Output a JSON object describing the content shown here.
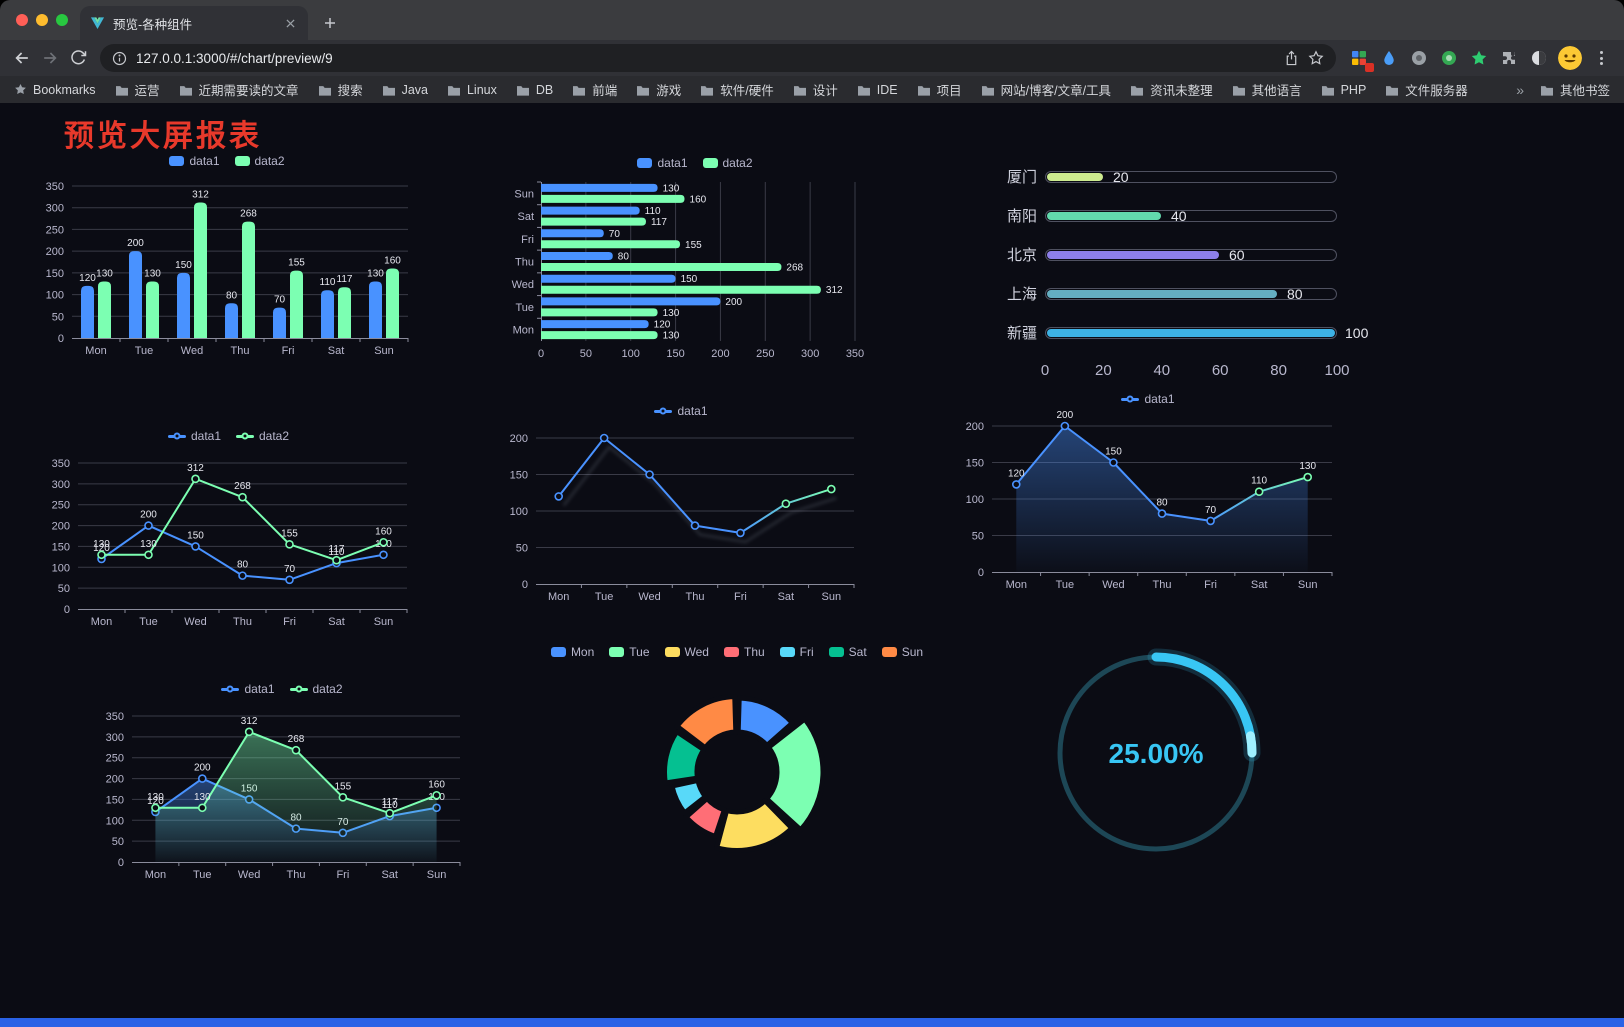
{
  "browser": {
    "tab": {
      "title": "预览-各种组件"
    },
    "url": "127.0.0.1:3000/#/chart/preview/9",
    "bookmarks_bar": {
      "root_label": "Bookmarks",
      "folders": [
        "运营",
        "近期需要读的文章",
        "搜索",
        "Java",
        "Linux",
        "DB",
        "前端",
        "游戏",
        "软件/硬件",
        "设计",
        "IDE",
        "项目",
        "网站/博客/文章/工具",
        "资讯未整理",
        "其他语言",
        "PHP",
        "文件服务器"
      ],
      "overflow": "»",
      "other": "其他书签"
    }
  },
  "page": {
    "title": "预览大屏报表",
    "title_color": "#e8392b",
    "accent_bottom_bar": "#2a62e6"
  },
  "chart_data": [
    {
      "id": "bar-vertical",
      "type": "bar",
      "categories": [
        "Mon",
        "Tue",
        "Wed",
        "Thu",
        "Fri",
        "Sat",
        "Sun"
      ],
      "series": [
        {
          "name": "data1",
          "color": "#4992ff",
          "values": [
            120,
            200,
            150,
            80,
            70,
            110,
            130
          ]
        },
        {
          "name": "data2",
          "color": "#7cffb2",
          "values": [
            130,
            130,
            312,
            268,
            155,
            117,
            160
          ]
        }
      ],
      "ylim": [
        0,
        350
      ],
      "ytick": 50,
      "legend_position": "top",
      "grid": true
    },
    {
      "id": "bar-horizontal",
      "type": "bar",
      "orientation": "horizontal",
      "categories": [
        "Mon",
        "Tue",
        "Wed",
        "Thu",
        "Fri",
        "Sat",
        "Sun"
      ],
      "series": [
        {
          "name": "data1",
          "color": "#4992ff",
          "values": [
            120,
            200,
            150,
            80,
            70,
            110,
            130
          ]
        },
        {
          "name": "data2",
          "color": "#7cffb2",
          "values": [
            130,
            130,
            312,
            268,
            155,
            117,
            160
          ]
        }
      ],
      "xlim": [
        0,
        350
      ],
      "xtick": 50,
      "legend_position": "top",
      "grid": true
    },
    {
      "id": "city-progress",
      "type": "bar",
      "orientation": "progress",
      "categories": [
        "厦门",
        "南阳",
        "北京",
        "上海",
        "新疆"
      ],
      "values": [
        20,
        40,
        60,
        80,
        100
      ],
      "colors": [
        "#cdeb8f",
        "#62d9ad",
        "#8d7fea",
        "#64aec2",
        "#3db2e5"
      ],
      "xlim": [
        0,
        100
      ],
      "xticks": [
        0,
        20,
        40,
        60,
        80,
        100
      ]
    },
    {
      "id": "line-double",
      "type": "line",
      "labels": true,
      "categories": [
        "Mon",
        "Tue",
        "Wed",
        "Thu",
        "Fri",
        "Sat",
        "Sun"
      ],
      "series": [
        {
          "name": "data1",
          "color": "#4992ff",
          "values": [
            120,
            200,
            150,
            80,
            70,
            110,
            130
          ]
        },
        {
          "name": "data2",
          "color": "#7cffb2",
          "values": [
            130,
            130,
            312,
            268,
            155,
            117,
            160
          ]
        }
      ],
      "ylim": [
        0,
        350
      ],
      "ytick": 50,
      "legend_position": "top",
      "grid": true
    },
    {
      "id": "line-single",
      "type": "line",
      "labels": false,
      "shadow": true,
      "categories": [
        "Mon",
        "Tue",
        "Wed",
        "Thu",
        "Fri",
        "Sat",
        "Sun"
      ],
      "series": [
        {
          "name": "data1",
          "color": "#4992ff",
          "color_end": "#7cffb2",
          "values": [
            120,
            200,
            150,
            80,
            70,
            110,
            130
          ]
        }
      ],
      "ylim": [
        0,
        200
      ],
      "ytick": 50,
      "legend_position": "top",
      "grid": true
    },
    {
      "id": "area-single",
      "type": "area",
      "labels": true,
      "area": true,
      "categories": [
        "Mon",
        "Tue",
        "Wed",
        "Thu",
        "Fri",
        "Sat",
        "Sun"
      ],
      "series": [
        {
          "name": "data1",
          "color": "#4992ff",
          "color_end": "#7cffb2",
          "values": [
            120,
            200,
            150,
            80,
            70,
            110,
            130
          ]
        }
      ],
      "ylim": [
        0,
        200
      ],
      "ytick": 50,
      "legend_position": "top",
      "grid": true
    },
    {
      "id": "area-double",
      "type": "area",
      "labels": true,
      "area": true,
      "categories": [
        "Mon",
        "Tue",
        "Wed",
        "Thu",
        "Fri",
        "Sat",
        "Sun"
      ],
      "series": [
        {
          "name": "data1",
          "color": "#4992ff",
          "values": [
            120,
            200,
            150,
            80,
            70,
            110,
            130
          ]
        },
        {
          "name": "data2",
          "color": "#7cffb2",
          "values": [
            130,
            130,
            312,
            268,
            155,
            117,
            160
          ]
        }
      ],
      "ylim": [
        0,
        350
      ],
      "ytick": 50,
      "legend_position": "top",
      "grid": true
    },
    {
      "id": "donut",
      "type": "pie",
      "rose": true,
      "inner_radius": true,
      "labels": [
        "Mon",
        "Tue",
        "Wed",
        "Thu",
        "Fri",
        "Sat",
        "Sun"
      ],
      "values": [
        120,
        200,
        150,
        80,
        70,
        110,
        130
      ],
      "colors": [
        "#4992ff",
        "#7cffb2",
        "#fddd60",
        "#ff6e76",
        "#58d9f9",
        "#05c091",
        "#ff8a45"
      ],
      "legend_position": "top"
    },
    {
      "id": "gauge",
      "type": "gauge",
      "value": 25,
      "label": "25.00%",
      "color": "#38c6f4",
      "track_color": "#1d4756"
    }
  ]
}
